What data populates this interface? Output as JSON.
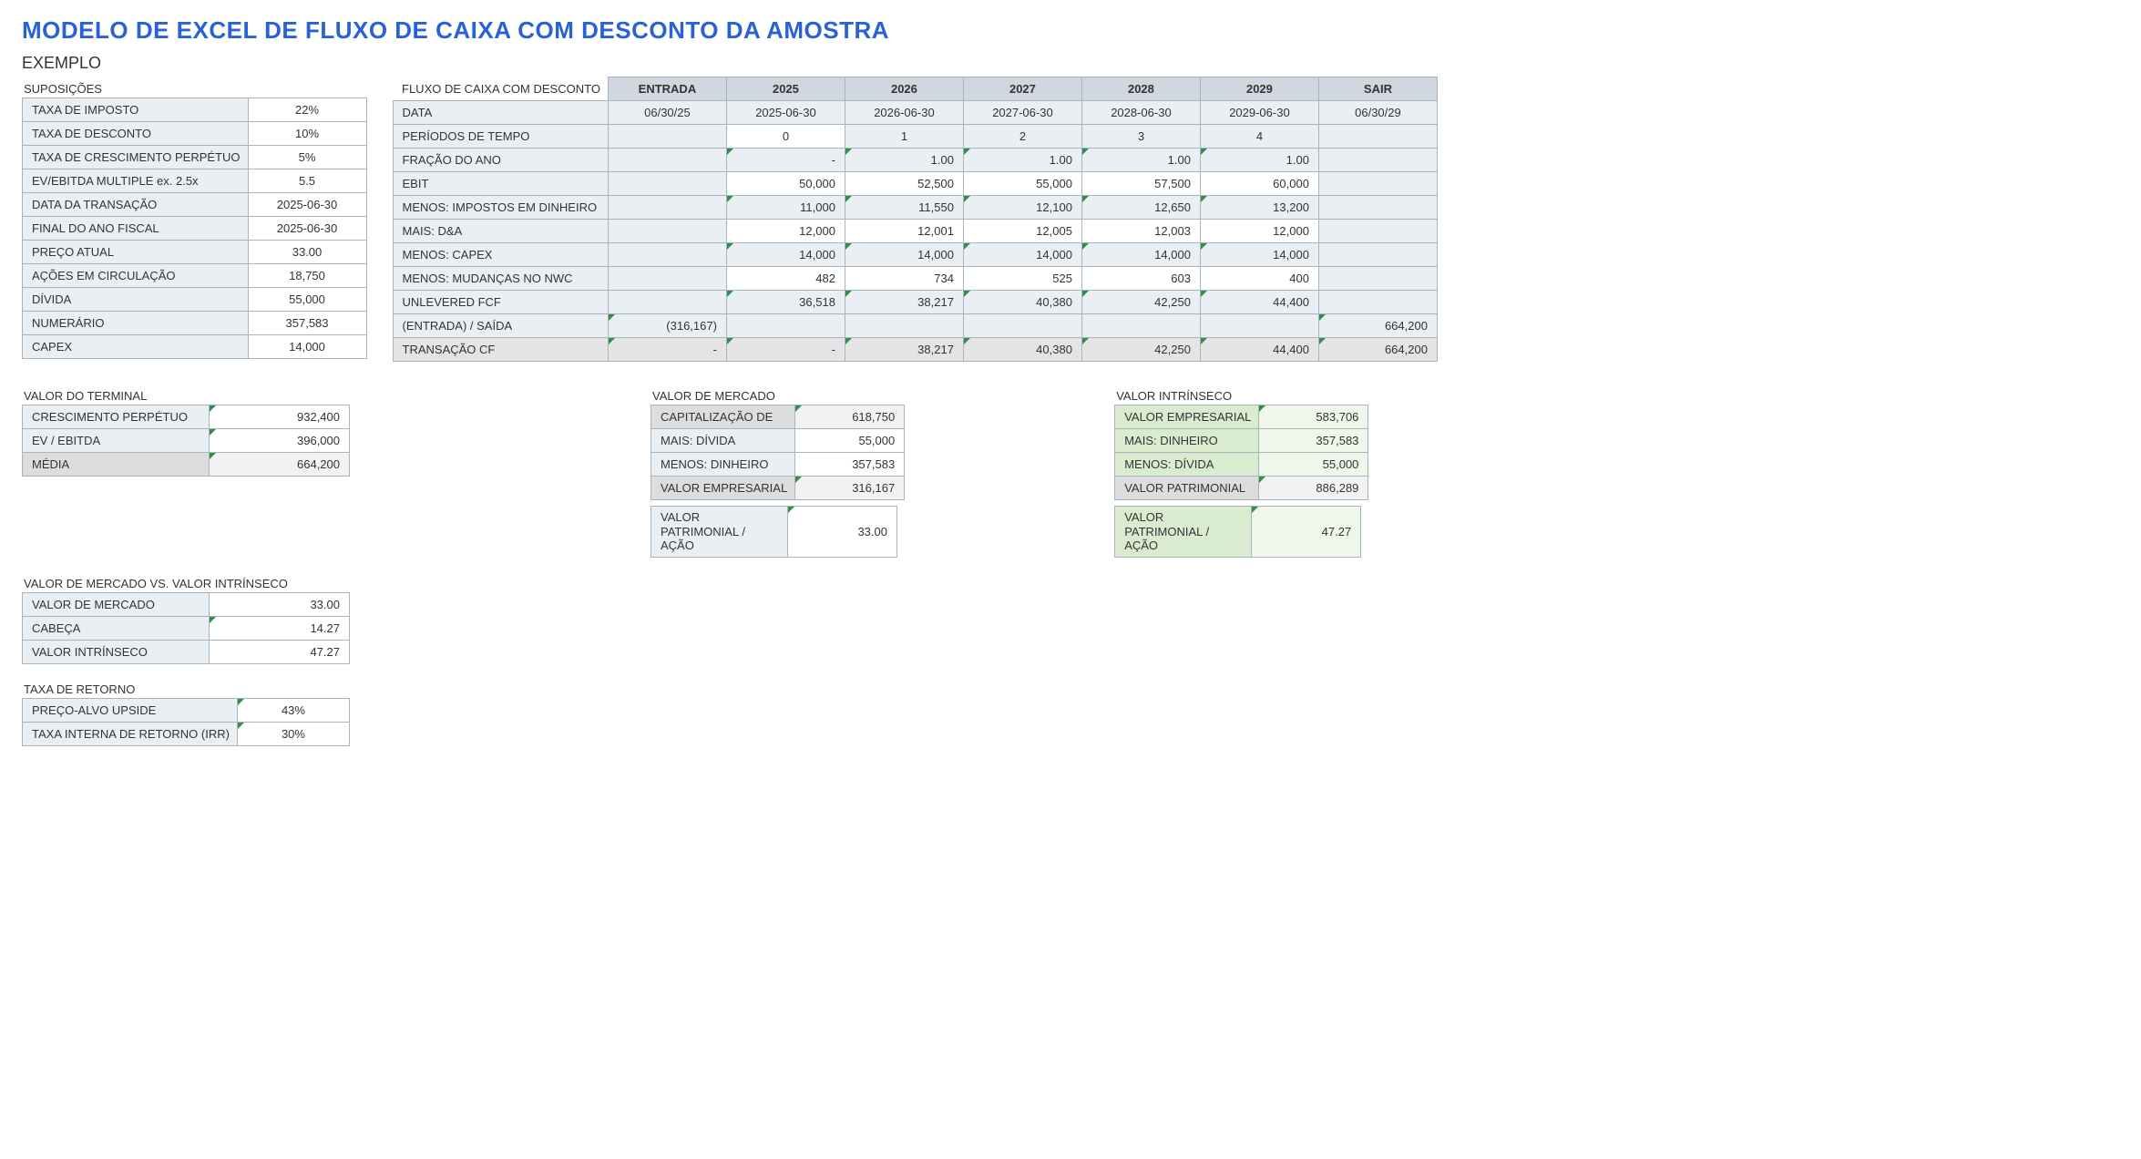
{
  "title": "MODELO DE EXCEL DE FLUXO DE CAIXA COM DESCONTO DA AMOSTRA",
  "subtitle": "EXEMPLO",
  "colors": {
    "title": "#2962d6",
    "border": "#a8b4bf",
    "label_bg": "#eaeff4",
    "header_bg": "#d0d7de",
    "grey_bg": "#e4e4e4",
    "green_label": "#d9ecd0",
    "green_val": "#eef7ea",
    "triangle": "#2f8f46"
  },
  "assumptions": {
    "heading": "SUPOSIÇÕES",
    "rows": [
      {
        "label": "TAXA DE IMPOSTO",
        "value": "22%"
      },
      {
        "label": "TAXA DE DESCONTO",
        "value": "10%"
      },
      {
        "label": "TAXA DE CRESCIMENTO PERPÉTUO",
        "value": "5%"
      },
      {
        "label": "EV/EBITDA MULTIPLE  ex. 2.5x",
        "value": "5.5"
      },
      {
        "label": "DATA DA TRANSAÇÃO",
        "value": "2025-06-30"
      },
      {
        "label": "FINAL DO ANO FISCAL",
        "value": "2025-06-30"
      },
      {
        "label": "PREÇO ATUAL",
        "value": "33.00"
      },
      {
        "label": "AÇÕES EM CIRCULAÇÃO",
        "value": "18,750"
      },
      {
        "label": "DÍVIDA",
        "value": "55,000"
      },
      {
        "label": "NUMERÁRIO",
        "value": "357,583"
      },
      {
        "label": "CAPEX",
        "value": "14,000"
      }
    ]
  },
  "dcf": {
    "heading": "FLUXO DE CAIXA COM DESCONTO",
    "headers": [
      "ENTRADA",
      "2025",
      "2026",
      "2027",
      "2028",
      "2029",
      "SAIR"
    ],
    "rows": [
      {
        "label": "DATA",
        "vals": [
          "06/30/25",
          "2025-06-30",
          "2026-06-30",
          "2027-06-30",
          "2028-06-30",
          "2029-06-30",
          "06/30/29"
        ],
        "tri": [
          0,
          0,
          0,
          0,
          0,
          0,
          0
        ],
        "align": "c"
      },
      {
        "label": "PERÍODOS DE TEMPO",
        "vals": [
          "",
          "0",
          "1",
          "2",
          "3",
          "4",
          ""
        ],
        "tri": [
          0,
          0,
          0,
          0,
          0,
          0,
          0
        ],
        "align": "c",
        "white0": true
      },
      {
        "label": "FRAÇÃO DO ANO",
        "vals": [
          "",
          "-",
          "1.00",
          "1.00",
          "1.00",
          "1.00",
          ""
        ],
        "tri": [
          0,
          1,
          1,
          1,
          1,
          1,
          0
        ],
        "align": "r"
      },
      {
        "label": "EBIT",
        "vals": [
          "",
          "50,000",
          "52,500",
          "55,000",
          "57,500",
          "60,000",
          ""
        ],
        "tri": [
          0,
          0,
          0,
          0,
          0,
          0,
          0
        ],
        "align": "r",
        "whiteRow": true
      },
      {
        "label": "MENOS: IMPOSTOS EM DINHEIRO",
        "vals": [
          "",
          "11,000",
          "11,550",
          "12,100",
          "12,650",
          "13,200",
          ""
        ],
        "tri": [
          0,
          1,
          1,
          1,
          1,
          1,
          0
        ],
        "align": "r"
      },
      {
        "label": "MAIS: D&A",
        "vals": [
          "",
          "12,000",
          "12,001",
          "12,005",
          "12,003",
          "12,000",
          ""
        ],
        "tri": [
          0,
          0,
          0,
          0,
          0,
          0,
          0
        ],
        "align": "r",
        "whiteRow": true
      },
      {
        "label": "MENOS: CAPEX",
        "vals": [
          "",
          "14,000",
          "14,000",
          "14,000",
          "14,000",
          "14,000",
          ""
        ],
        "tri": [
          0,
          1,
          1,
          1,
          1,
          1,
          0
        ],
        "align": "r"
      },
      {
        "label": "MENOS: MUDANÇAS NO NWC",
        "vals": [
          "",
          "482",
          "734",
          "525",
          "603",
          "400",
          ""
        ],
        "tri": [
          0,
          0,
          0,
          0,
          0,
          0,
          0
        ],
        "align": "r",
        "whiteRow": true
      },
      {
        "label": "UNLEVERED FCF",
        "vals": [
          "",
          "36,518",
          "38,217",
          "40,380",
          "42,250",
          "44,400",
          ""
        ],
        "tri": [
          0,
          1,
          1,
          1,
          1,
          1,
          0
        ],
        "align": "r"
      },
      {
        "label": "(ENTRADA) / SAÍDA",
        "vals": [
          "(316,167)",
          "",
          "",
          "",
          "",
          "",
          "664,200"
        ],
        "tri": [
          1,
          0,
          0,
          0,
          0,
          0,
          1
        ],
        "align": "r"
      },
      {
        "label": "TRANSAÇÃO CF",
        "vals": [
          "-",
          "-",
          "38,217",
          "40,380",
          "42,250",
          "44,400",
          "664,200"
        ],
        "tri": [
          1,
          1,
          1,
          1,
          1,
          1,
          1
        ],
        "align": "r",
        "grey": true
      }
    ]
  },
  "terminal": {
    "heading": "VALOR DO TERMINAL",
    "rows": [
      {
        "label": "CRESCIMENTO PERPÉTUO",
        "value": "932,400",
        "tri": 1
      },
      {
        "label": "EV / EBITDA",
        "value": "396,000",
        "tri": 1
      },
      {
        "label": "MÉDIA",
        "value": "664,200",
        "tri": 1,
        "grey": true
      }
    ]
  },
  "market_value": {
    "heading": "VALOR DE MERCADO",
    "rows": [
      {
        "label": "CAPITALIZAÇÃO DE",
        "value": "618,750",
        "tri": 1,
        "grey": true
      },
      {
        "label": "MAIS: DÍVIDA",
        "value": "55,000"
      },
      {
        "label": "MENOS: DINHEIRO",
        "value": "357,583"
      },
      {
        "label": "VALOR EMPRESARIAL",
        "value": "316,167",
        "tri": 1,
        "grey": true
      }
    ],
    "per_share": {
      "label": "VALOR PATRIMONIAL / AÇÃO",
      "value": "33.00",
      "tri": 1
    }
  },
  "intrinsic_value": {
    "heading": "VALOR INTRÍNSECO",
    "rows": [
      {
        "label": "VALOR EMPRESARIAL",
        "value": "583,706",
        "tri": 1
      },
      {
        "label": "MAIS: DINHEIRO",
        "value": "357,583"
      },
      {
        "label": "MENOS: DÍVIDA",
        "value": "55,000"
      },
      {
        "label": "VALOR PATRIMONIAL",
        "value": "886,289",
        "tri": 1,
        "grey": true
      }
    ],
    "per_share": {
      "label": "VALOR PATRIMONIAL / AÇÃO",
      "value": "47.27",
      "tri": 1
    }
  },
  "market_vs_intrinsic": {
    "heading": "VALOR DE MERCADO VS. VALOR INTRÍNSECO",
    "rows": [
      {
        "label": "VALOR DE MERCADO",
        "value": "33.00"
      },
      {
        "label": "CABEÇA",
        "value": "14.27",
        "tri": 1
      },
      {
        "label": "VALOR INTRÍNSECO",
        "value": "47.27"
      }
    ]
  },
  "rate_of_return": {
    "heading": "TAXA DE RETORNO",
    "rows": [
      {
        "label": "PREÇO-ALVO UPSIDE",
        "value": "43%",
        "tri": 1
      },
      {
        "label": "TAXA INTERNA DE RETORNO (IRR)",
        "value": "30%",
        "tri": 1
      }
    ]
  }
}
